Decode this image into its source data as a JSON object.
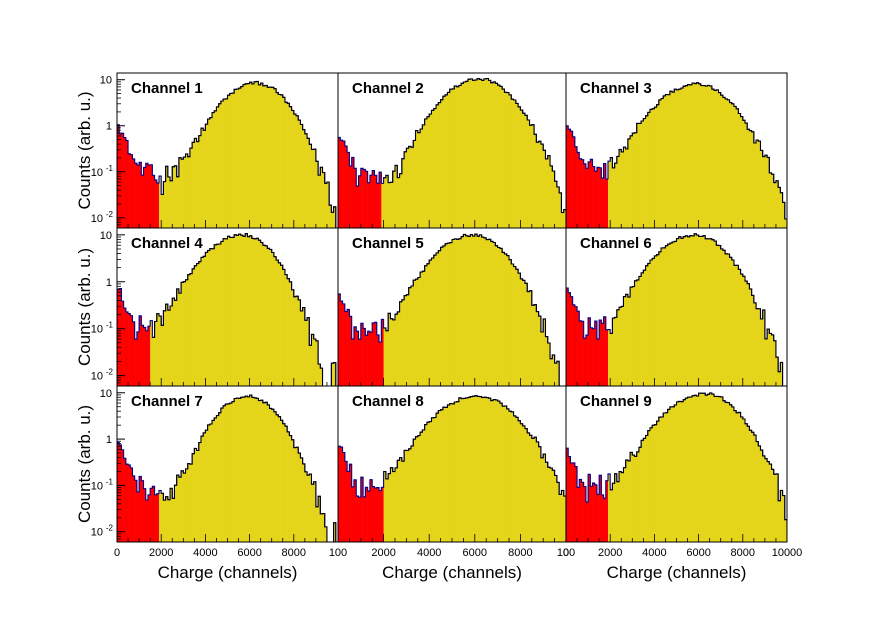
{
  "chart_data": {
    "type": "area",
    "description_kind": "grid-of-histograms",
    "grid": {
      "rows": 3,
      "cols": 3
    },
    "ylabel": "Counts (arb. u.)",
    "xlabel": "Charge (channels)",
    "yscale": "log",
    "ylim": [
      0.006,
      14
    ],
    "y_ticks": [
      {
        "value": 0.01,
        "base": "10",
        "exp": "-2"
      },
      {
        "value": 0.1,
        "base": "10",
        "exp": "-1"
      },
      {
        "value": 1,
        "base": "1",
        "exp": ""
      },
      {
        "value": 10,
        "base": "10",
        "exp": ""
      }
    ],
    "x_ticks_truncated": [
      "0",
      "2000",
      "4000",
      "6000",
      "8000",
      "100"
    ],
    "x_ticks_full": [
      "2000",
      "4000",
      "6000",
      "8000",
      "10000"
    ],
    "first_x_tick": "0",
    "colors": {
      "red_fill": "#ff0000",
      "yellow_fill": "#e5d51a",
      "outline": "#00008b"
    },
    "panels": [
      {
        "title": "Channel 1",
        "xlim": [
          0,
          10000
        ],
        "red_cut": 1950,
        "noise_amp": 1.3,
        "peak": 6300,
        "peak_amp": 8.5,
        "sigma_left": 1100,
        "sigma_right": 1000,
        "pedestal": 0.07
      },
      {
        "title": "Channel 2",
        "xlim": [
          0,
          10000
        ],
        "red_cut": 1950,
        "noise_amp": 0.8,
        "peak": 6200,
        "peak_amp": 10.5,
        "sigma_left": 1150,
        "sigma_right": 1050,
        "pedestal": 0.06
      },
      {
        "title": "Channel 3",
        "xlim": [
          0,
          10000
        ],
        "red_cut": 1950,
        "noise_amp": 1.2,
        "peak": 5900,
        "peak_amp": 8.0,
        "sigma_left": 1250,
        "sigma_right": 1150,
        "pedestal": 0.06
      },
      {
        "title": "Channel 4",
        "xlim": [
          0,
          10000
        ],
        "red_cut": 1550,
        "noise_amp": 0.9,
        "peak": 5700,
        "peak_amp": 10.0,
        "sigma_left": 1200,
        "sigma_right": 1000,
        "pedestal": 0.1
      },
      {
        "title": "Channel 5",
        "xlim": [
          0,
          10000
        ],
        "red_cut": 2000,
        "noise_amp": 0.7,
        "peak": 5900,
        "peak_amp": 10.0,
        "sigma_left": 1150,
        "sigma_right": 1050,
        "pedestal": 0.06
      },
      {
        "title": "Channel 6",
        "xlim": [
          0,
          10000
        ],
        "red_cut": 1950,
        "noise_amp": 0.9,
        "peak": 5800,
        "peak_amp": 10.0,
        "sigma_left": 1200,
        "sigma_right": 1100,
        "pedestal": 0.07
      },
      {
        "title": "Channel 7",
        "xlim": [
          0,
          10000
        ],
        "red_cut": 1950,
        "noise_amp": 1.0,
        "peak": 5900,
        "peak_amp": 8.5,
        "sigma_left": 1000,
        "sigma_right": 1000,
        "pedestal": 0.05
      },
      {
        "title": "Channel 8",
        "xlim": [
          0,
          10000
        ],
        "red_cut": 2000,
        "noise_amp": 0.8,
        "peak": 6100,
        "peak_amp": 8.5,
        "sigma_left": 1300,
        "sigma_right": 1200,
        "pedestal": 0.05
      },
      {
        "title": "Channel 9",
        "xlim": [
          0,
          10000
        ],
        "red_cut": 1950,
        "noise_amp": 0.7,
        "peak": 6300,
        "peak_amp": 9.5,
        "sigma_left": 1300,
        "sigma_right": 1100,
        "pedestal": 0.07
      }
    ]
  }
}
